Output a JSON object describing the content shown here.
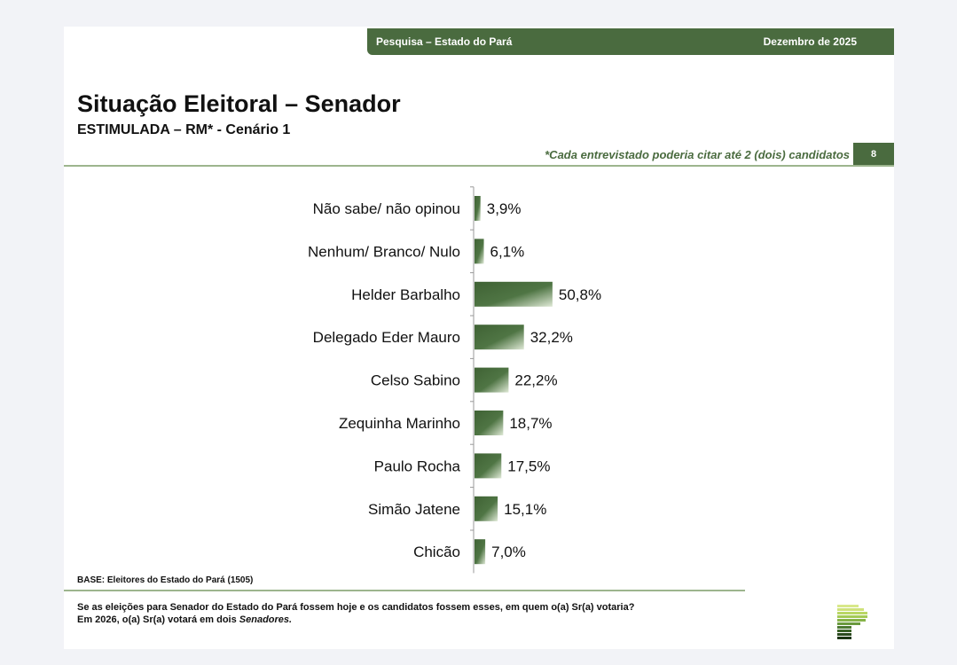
{
  "header": {
    "survey": "Pesquisa – Estado do Pará",
    "date": "Dezembro de 2025"
  },
  "title": "Situação Eleitoral – Senador",
  "subtitle": "ESTIMULADA – RM* - Cenário 1",
  "note": "*Cada entrevistado poderia citar até 2 (dois) candidatos",
  "page_number": "8",
  "base": "BASE: Eleitores do Estado do Pará (1505)",
  "question_line1": "Se as eleições para Senador do Estado do Pará fossem hoje e os candidatos fossem esses, em quem o(a) Sr(a) votaria?",
  "question_line2_prefix": "Em 2026, o(a) Sr(a) votará em dois ",
  "question_line2_italic": "Senadores.",
  "colors": {
    "brand": "#4a6b3f",
    "bar_dark": "#3f6234",
    "bar_light": "#dfe9d6"
  },
  "chart_data": {
    "type": "bar",
    "orientation": "horizontal",
    "categories": [
      "Não sabe/ não opinou",
      "Nenhum/ Branco/ Nulo",
      "Helder Barbalho",
      "Delegado Eder Mauro",
      "Celso Sabino",
      "Zequinha Marinho",
      "Paulo Rocha",
      "Simão Jatene",
      "Chicão"
    ],
    "values": [
      3.9,
      6.1,
      50.8,
      32.2,
      22.2,
      18.7,
      17.5,
      15.1,
      7.0
    ],
    "data_labels": [
      "3,9%",
      "6,1%",
      "50,8%",
      "32,2%",
      "22,2%",
      "18,7%",
      "17,5%",
      "15,1%",
      "7,0%"
    ],
    "xlim": [
      0,
      100
    ],
    "grid": false
  }
}
